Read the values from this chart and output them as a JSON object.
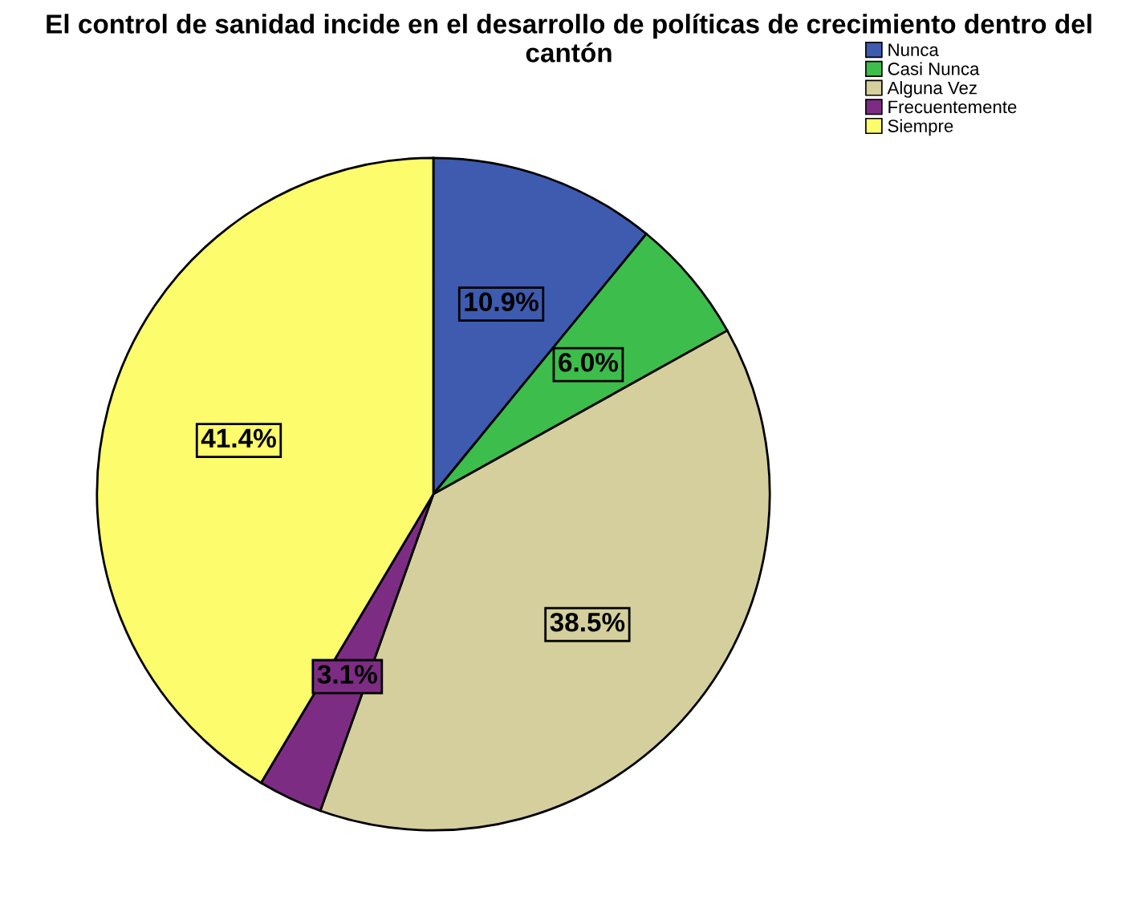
{
  "chart_data": {
    "type": "pie",
    "title": "El control de sanidad incide en el desarrollo de políticas de crecimiento dentro del cantón",
    "categories": [
      "Nunca",
      "Casi Nunca",
      "Alguna Vez",
      "Frecuentemente",
      "Siempre"
    ],
    "values": [
      10.9,
      6.0,
      38.5,
      3.1,
      41.4
    ],
    "colors": [
      "#3e5bb0",
      "#3dbd4b",
      "#d4cf9c",
      "#7d2c84",
      "#fcfc6c"
    ],
    "value_labels": [
      "10.9%",
      "6.0%",
      "38.5%",
      "3.1%",
      "41.4%"
    ],
    "legend": "top right"
  }
}
